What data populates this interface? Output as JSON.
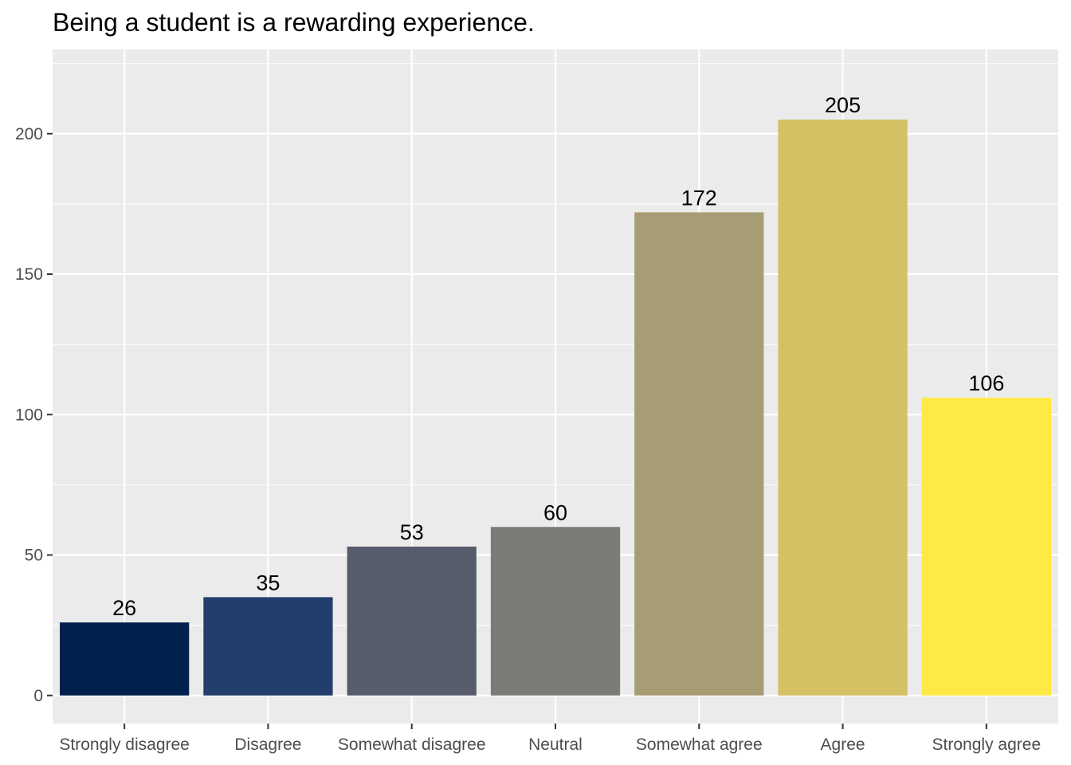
{
  "chart_data": {
    "type": "bar",
    "title": "Being a student is a rewarding experience.",
    "xlabel": "",
    "ylabel": "",
    "categories": [
      "Strongly disagree",
      "Disagree",
      "Somewhat disagree",
      "Neutral",
      "Somewhat agree",
      "Agree",
      "Strongly agree"
    ],
    "values": [
      26,
      35,
      53,
      60,
      172,
      205,
      106
    ],
    "colors": [
      "#00204d",
      "#233e6c",
      "#575c6d",
      "#7c7b78",
      "#a69d75",
      "#d3c164",
      "#ffe945"
    ],
    "ylim": [
      -10,
      230
    ],
    "yticks": [
      0,
      50,
      100,
      150,
      200
    ],
    "grid": true,
    "legend": "none",
    "panel_background": "#ebebeb",
    "grid_color": "#ffffff"
  }
}
